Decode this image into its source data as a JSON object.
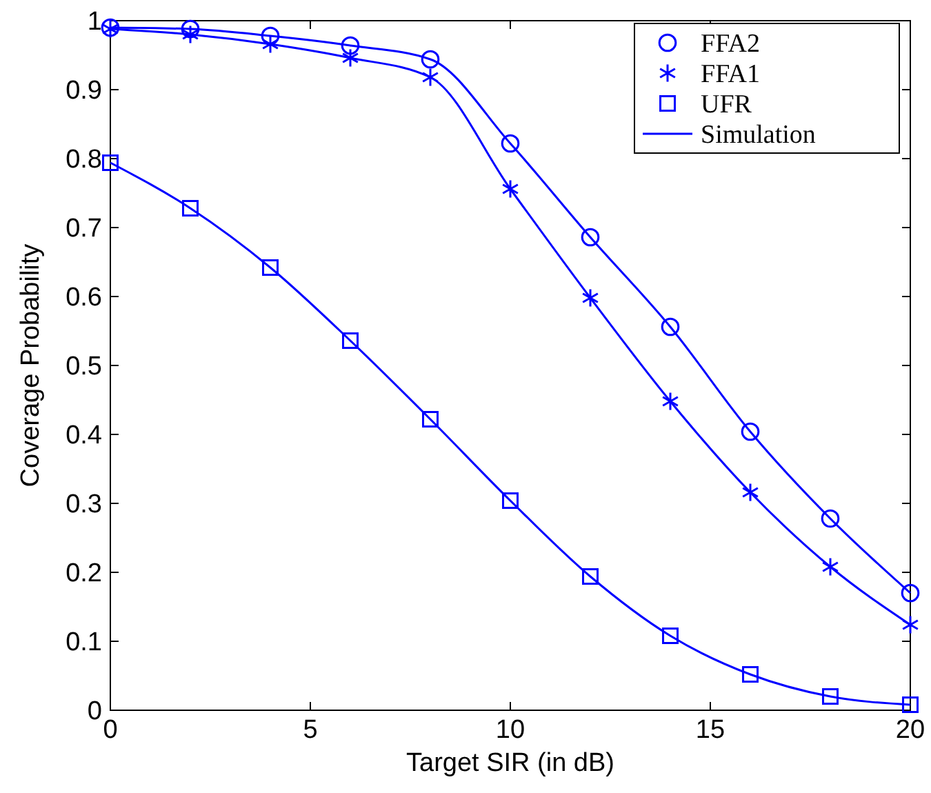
{
  "chart_data": {
    "type": "line",
    "xlabel": "Target SIR (in dB)",
    "ylabel": "Coverage Probability",
    "x": [
      0,
      2,
      4,
      6,
      8,
      10,
      12,
      14,
      16,
      18,
      20
    ],
    "series": [
      {
        "name": "FFA2",
        "type": "scatter",
        "marker": "circle",
        "color": "#0000ff",
        "values": [
          0.99,
          0.988,
          0.978,
          0.964,
          0.944,
          0.822,
          0.686,
          0.556,
          0.404,
          0.278,
          0.17
        ]
      },
      {
        "name": "FFA1",
        "type": "scatter",
        "marker": "cross",
        "color": "#0000ff",
        "values": [
          0.988,
          0.98,
          0.966,
          0.946,
          0.918,
          0.756,
          0.598,
          0.448,
          0.316,
          0.208,
          0.124
        ]
      },
      {
        "name": "UFR",
        "type": "scatter",
        "marker": "square",
        "color": "#0000ff",
        "values": [
          0.794,
          0.728,
          0.642,
          0.536,
          0.422,
          0.304,
          0.194,
          0.108,
          0.052,
          0.02,
          0.008
        ]
      },
      {
        "name": "Simulation",
        "line_style": "solid",
        "color": "#0000ff",
        "values": [
          0.99,
          0.988,
          0.978,
          0.964,
          0.944,
          0.822,
          0.686,
          0.556,
          0.404,
          0.278,
          0.17
        ]
      },
      {
        "line_style": "solid",
        "color": "#0000ff",
        "values": [
          0.988,
          0.98,
          0.966,
          0.946,
          0.918,
          0.756,
          0.598,
          0.448,
          0.316,
          0.208,
          0.124
        ]
      },
      {
        "line_style": "solid",
        "color": "#0000ff",
        "values": [
          0.794,
          0.728,
          0.642,
          0.536,
          0.422,
          0.304,
          0.194,
          0.108,
          0.052,
          0.02,
          0.008
        ]
      }
    ],
    "xlim": [
      0,
      20
    ],
    "xticks": [
      0,
      5,
      10,
      15,
      20
    ],
    "ylim": [
      0,
      1
    ],
    "yticks": [
      0,
      0.1,
      0.2,
      0.3,
      0.4,
      0.5,
      0.6,
      0.7,
      0.8,
      0.9,
      1
    ],
    "grid": false,
    "legend": "top right"
  }
}
